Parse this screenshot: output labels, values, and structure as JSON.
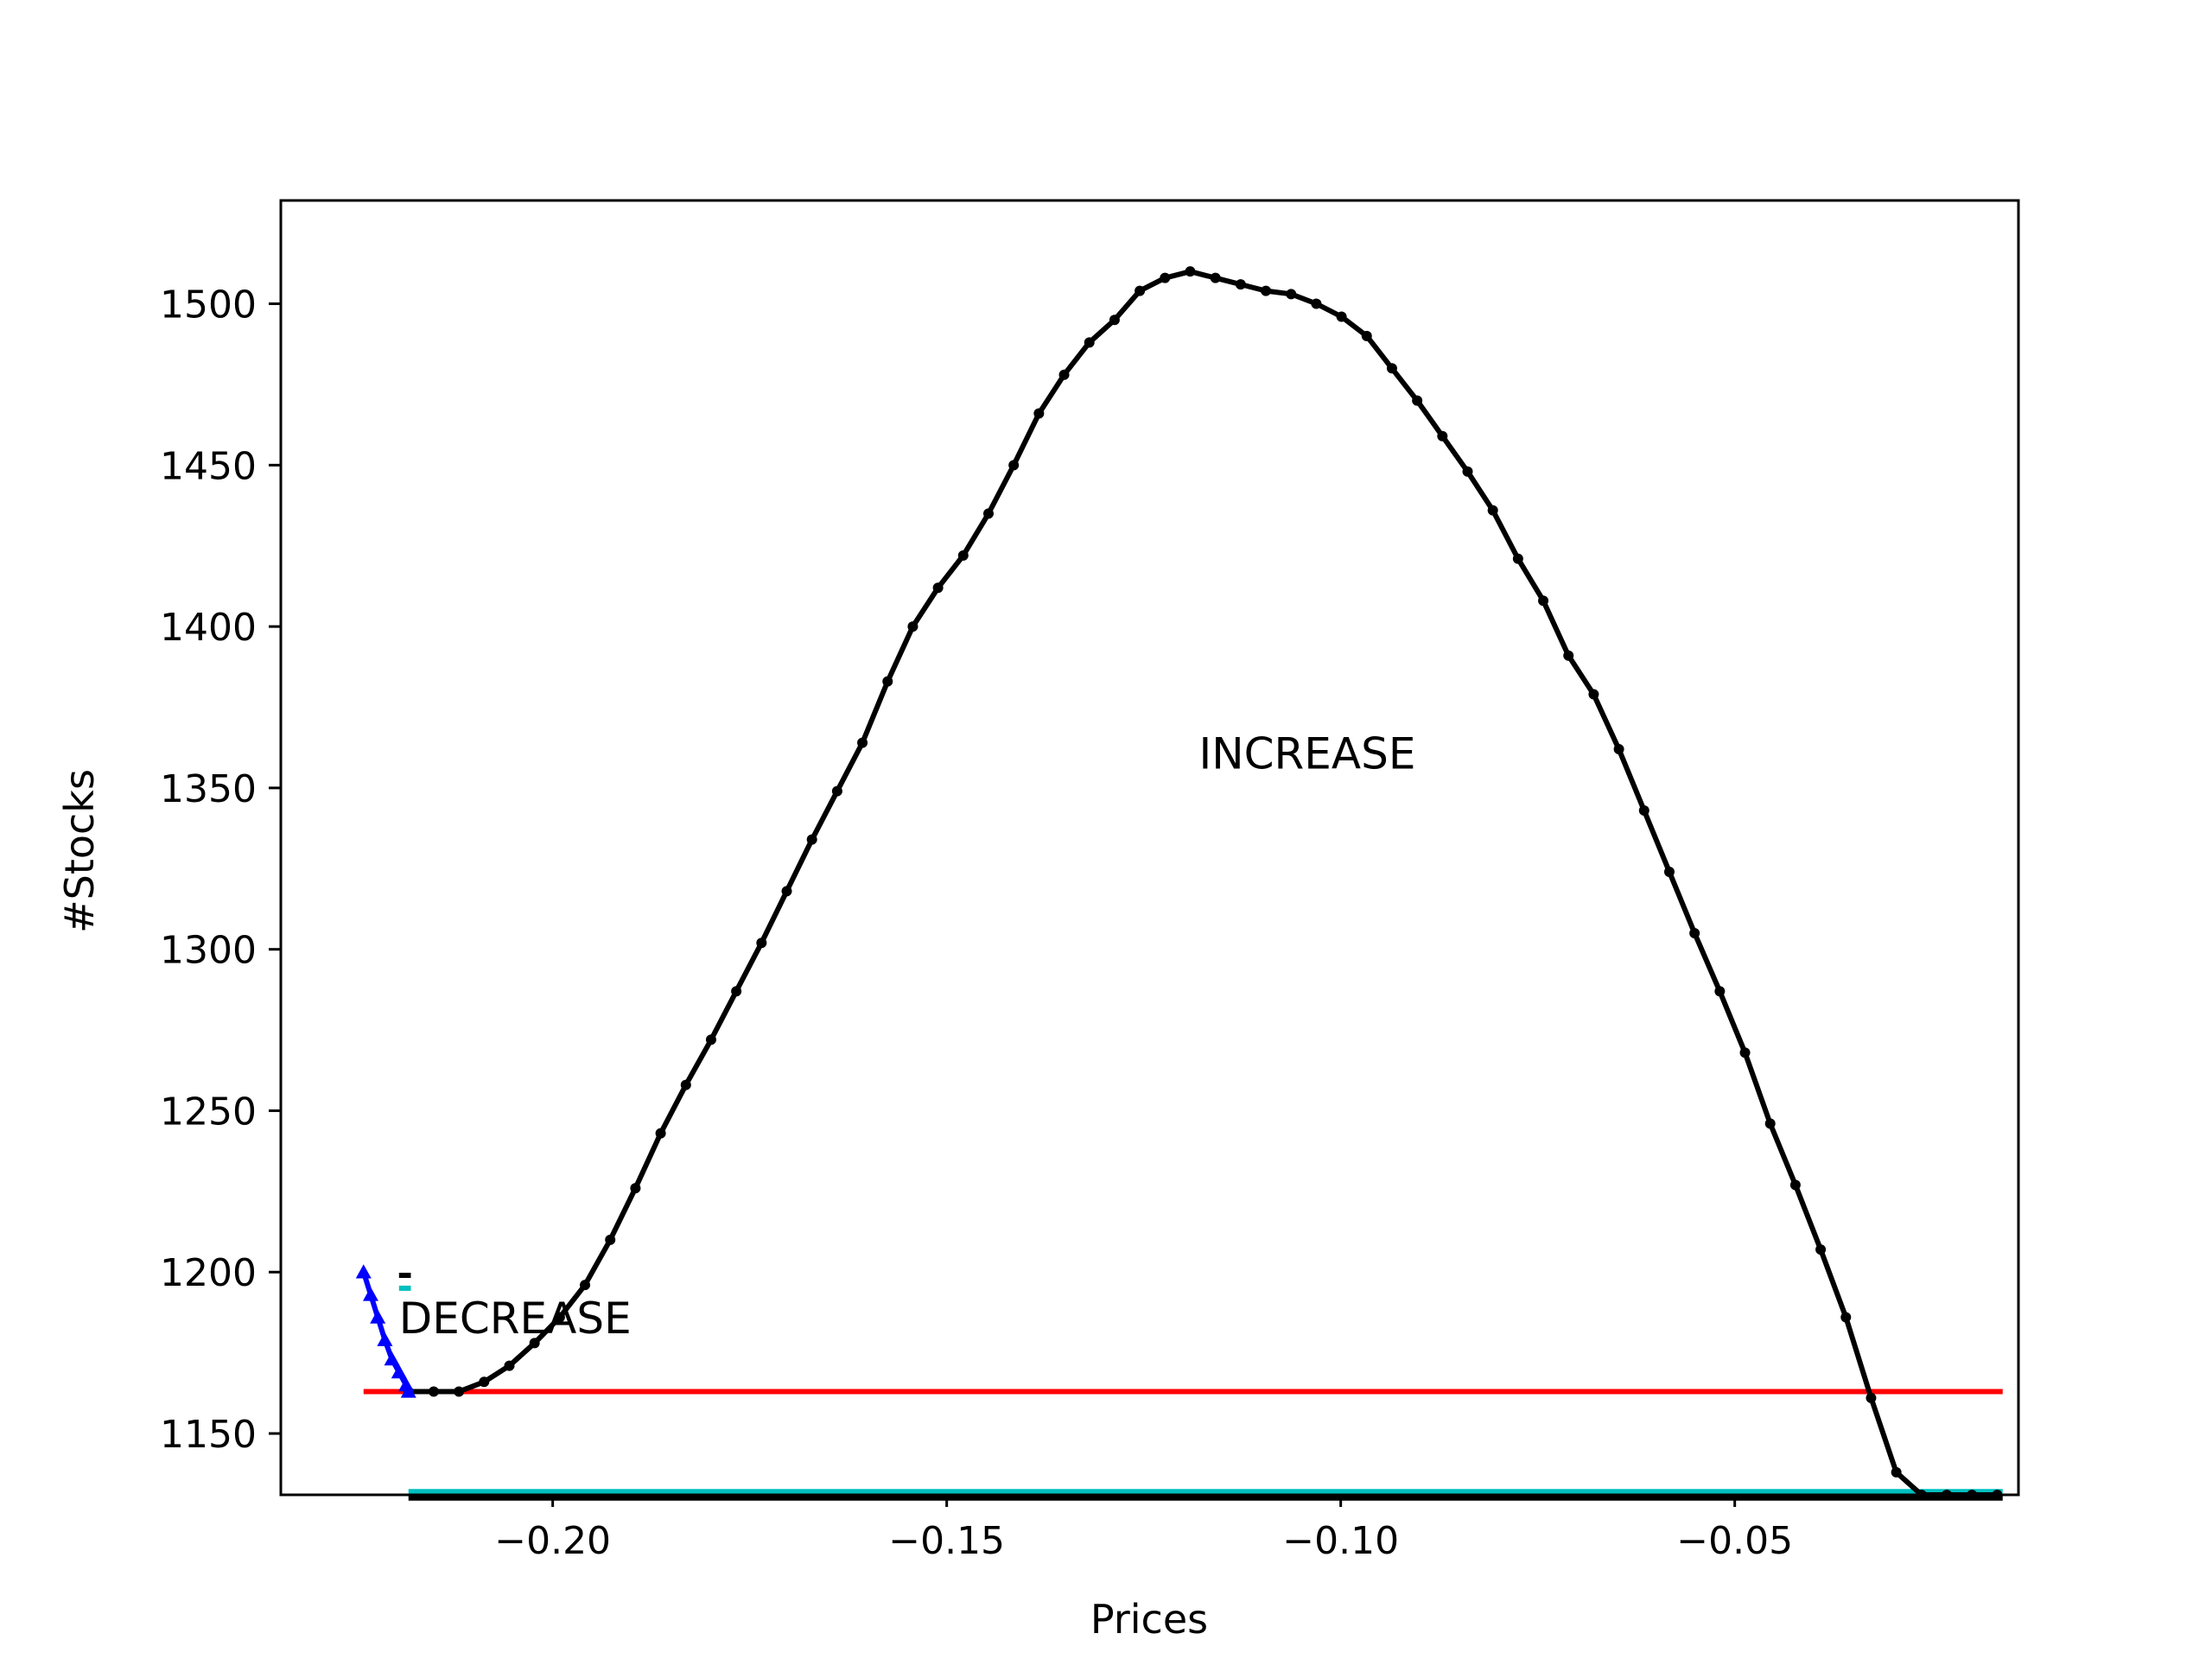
{
  "chart_data": {
    "type": "line",
    "title": "",
    "xlabel": "Prices",
    "ylabel": "#Stocks",
    "xlim": [
      -0.2345,
      -0.014
    ],
    "ylim": [
      1131,
      1532
    ],
    "x_ticks": [
      -0.2,
      -0.15,
      -0.1,
      -0.05
    ],
    "x_tick_labels": [
      "−0.20",
      "−0.15",
      "−0.10",
      "−0.05"
    ],
    "y_ticks": [
      1150,
      1200,
      1250,
      1300,
      1350,
      1400,
      1450,
      1500
    ],
    "y_tick_labels": [
      "1150",
      "1200",
      "1250",
      "1300",
      "1350",
      "1400",
      "1450",
      "1500"
    ],
    "grid": false,
    "annotations": [
      {
        "text": "INCREASE",
        "x": -0.118,
        "y": 1356
      },
      {
        "text": "DECREASE",
        "x": -0.2195,
        "y": 1181
      }
    ],
    "series": [
      {
        "color": "#000000",
        "marker": "circle",
        "x": [
          -0.2183,
          -0.2151,
          -0.2119,
          -0.2087,
          -0.2055,
          -0.2023,
          -0.1991,
          -0.1959,
          -0.1927,
          -0.1895,
          -0.1863,
          -0.1831,
          -0.1799,
          -0.1767,
          -0.1735,
          -0.1703,
          -0.1671,
          -0.1639,
          -0.1607,
          -0.1575,
          -0.1543,
          -0.1511,
          -0.1479,
          -0.1447,
          -0.1415,
          -0.1383,
          -0.1351,
          -0.1319,
          -0.1287,
          -0.1255,
          -0.1223,
          -0.1191,
          -0.1159,
          -0.1127,
          -0.1095,
          -0.1063,
          -0.1031,
          -0.0999,
          -0.0967,
          -0.0935,
          -0.0903,
          -0.0871,
          -0.0839,
          -0.0807,
          -0.0775,
          -0.0743,
          -0.0711,
          -0.0679,
          -0.0647,
          -0.0615,
          -0.0583,
          -0.0551,
          -0.0519,
          -0.0487,
          -0.0455,
          -0.0423,
          -0.0391,
          -0.0359,
          -0.0327,
          -0.0295,
          -0.0263,
          -0.0231,
          -0.0199,
          -0.0167
        ],
        "y": [
          1163,
          1163,
          1163,
          1166,
          1171,
          1178,
          1186,
          1196,
          1210,
          1226,
          1243,
          1258,
          1272,
          1287,
          1302,
          1318,
          1334,
          1349,
          1364,
          1383,
          1400,
          1412,
          1422,
          1435,
          1450,
          1466,
          1478,
          1488,
          1495,
          1504,
          1508,
          1510,
          1508,
          1506,
          1504,
          1503,
          1500,
          1496,
          1490,
          1480,
          1470,
          1459,
          1448,
          1436,
          1421,
          1408,
          1391,
          1379,
          1362,
          1343,
          1324,
          1305,
          1287,
          1268,
          1246,
          1227,
          1207,
          1186,
          1161,
          1138,
          1131,
          1131,
          1131,
          1131
        ]
      },
      {
        "color": "#0000ff",
        "marker": "triangle-up",
        "x": [
          -0.224,
          -0.2231,
          -0.2222,
          -0.2213,
          -0.2204,
          -0.2195,
          -0.2186,
          -0.2183
        ],
        "y": [
          1200,
          1193,
          1186,
          1179,
          1173,
          1169,
          1165,
          1163
        ]
      }
    ],
    "hlines": [
      {
        "color": "#ff0000",
        "y": 1163,
        "x_from": -0.224,
        "x_to": -0.016
      },
      {
        "color": "#00bfbf",
        "y": 1132,
        "x_from": -0.2183,
        "x_to": -0.016
      },
      {
        "color": "#000000",
        "y": 1130,
        "x_from": -0.2183,
        "x_to": -0.016
      }
    ],
    "small_marks": [
      {
        "color": "#000000",
        "y": 1199,
        "x_from": -0.2195,
        "x_to": -0.218
      },
      {
        "color": "#00bfbf",
        "y": 1195,
        "x_from": -0.2195,
        "x_to": -0.218
      }
    ]
  }
}
